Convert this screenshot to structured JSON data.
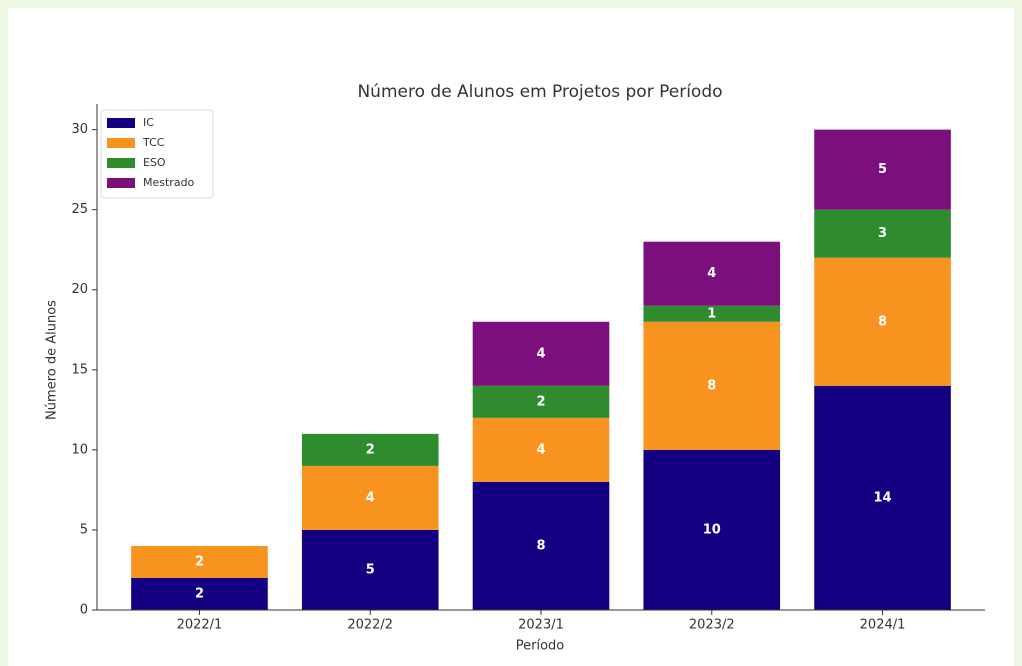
{
  "chart_data": {
    "type": "stacked_bar",
    "title": "Número de Alunos em Projetos por Período",
    "x_label": "Período",
    "y_label": "Número de Alunos",
    "categories": [
      "2022/1",
      "2022/2",
      "2023/1",
      "2023/2",
      "2024/1"
    ],
    "series": [
      {
        "name": "IC",
        "color": "#140080",
        "values": [
          2,
          5,
          8,
          10,
          14
        ]
      },
      {
        "name": "TCC",
        "color": "#f7931e",
        "values": [
          2,
          4,
          4,
          8,
          8
        ]
      },
      {
        "name": "ESO",
        "color": "#2e8b2e",
        "values": [
          0,
          2,
          2,
          1,
          3
        ]
      },
      {
        "name": "Mestrado",
        "color": "#7b0f7b",
        "values": [
          0,
          0,
          4,
          4,
          5
        ]
      }
    ],
    "ylim": [
      0,
      31.6
    ],
    "yticks": [
      0,
      5,
      10,
      15,
      20,
      25,
      30
    ],
    "legend": "upper left"
  }
}
